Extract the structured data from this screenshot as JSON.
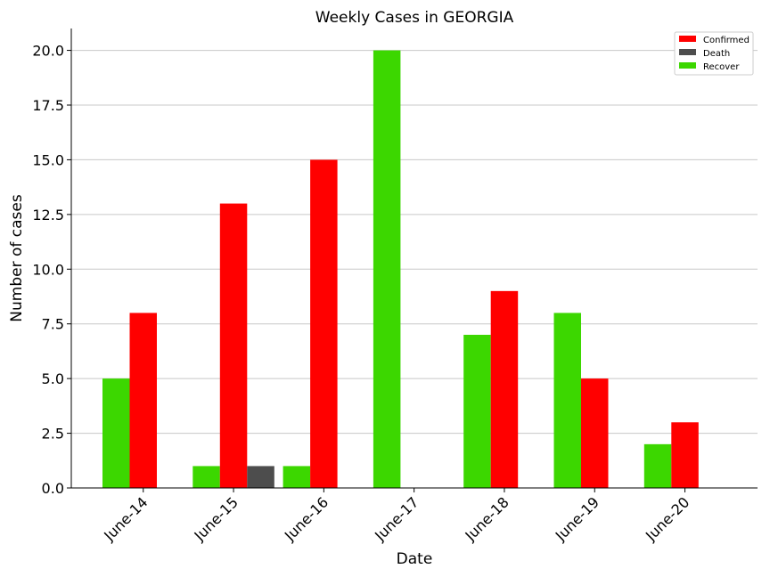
{
  "chart_data": {
    "type": "bar",
    "title": "Weekly Cases in GEORGIA",
    "xlabel": "Date",
    "ylabel": "Number of cases",
    "categories": [
      "June-14",
      "June-15",
      "June-16",
      "June-17",
      "June-18",
      "June-19",
      "June-20"
    ],
    "series": [
      {
        "name": "Recover",
        "color": "#3cd700",
        "values": [
          5,
          1,
          1,
          20,
          7,
          8,
          2
        ]
      },
      {
        "name": "Confirmed",
        "color": "#ff0000",
        "values": [
          8,
          13,
          15,
          0,
          9,
          5,
          3
        ]
      },
      {
        "name": "Death",
        "color": "#4d4d4d",
        "values": [
          0,
          1,
          0,
          0,
          0,
          0,
          0
        ]
      }
    ],
    "legend_order": [
      "Confirmed",
      "Death",
      "Recover"
    ],
    "ylim": [
      0,
      21
    ],
    "yticks": [
      "0.0",
      "2.5",
      "5.0",
      "7.5",
      "10.0",
      "12.5",
      "15.0",
      "17.5",
      "20.0"
    ],
    "grid": "horizontal",
    "legend_position": "top-right"
  }
}
